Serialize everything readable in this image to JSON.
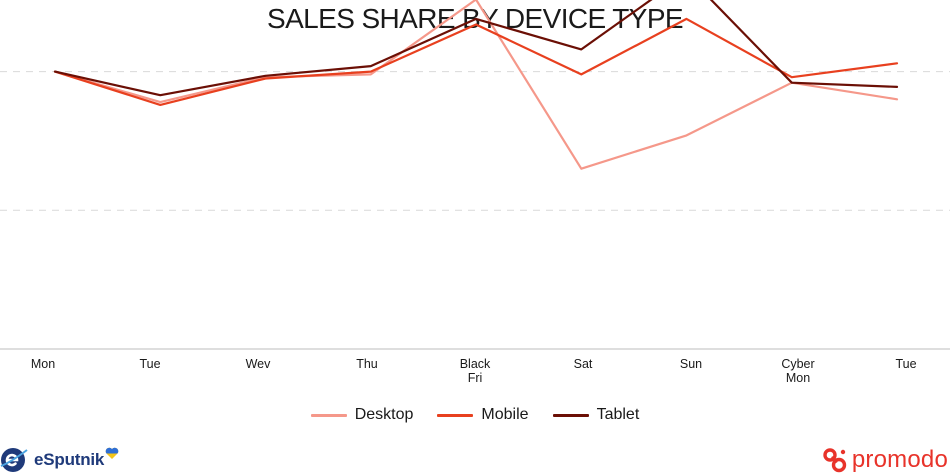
{
  "chart_data": {
    "type": "line",
    "title": "SALES SHARE BY DEVICE TYPE",
    "categories": [
      [
        "Mon"
      ],
      [
        "Tue"
      ],
      [
        "Wev"
      ],
      [
        "Thu"
      ],
      [
        "Black",
        "Fri"
      ],
      [
        "Sat"
      ],
      [
        "Sun"
      ],
      [
        "Cyber",
        "Mon"
      ],
      [
        "Tue"
      ]
    ],
    "ylim": [
      -1,
      0.15
    ],
    "gridlines": [
      0,
      -0.5
    ],
    "grid": true,
    "legend_position": "bottom",
    "series": [
      {
        "name": "Desktop",
        "color": "#f5988a",
        "values": [
          0.0,
          -0.11,
          -0.02,
          -0.01,
          0.26,
          -0.35,
          -0.23,
          -0.04,
          -0.1
        ]
      },
      {
        "name": "Mobile",
        "color": "#e8401f",
        "values": [
          0.0,
          -0.12,
          -0.025,
          0.0,
          0.17,
          -0.01,
          0.19,
          -0.02,
          0.03
        ]
      },
      {
        "name": "Tablet",
        "color": "#6b0f05",
        "values": [
          0.0,
          -0.085,
          -0.015,
          0.02,
          0.19,
          0.08,
          0.35,
          -0.04,
          -0.055
        ]
      }
    ]
  },
  "legend": {
    "items": [
      {
        "label": "Desktop",
        "color": "#f5988a"
      },
      {
        "label": "Mobile",
        "color": "#e8401f"
      },
      {
        "label": "Tablet",
        "color": "#6b0f05"
      }
    ]
  },
  "logos": {
    "left": "eSputnik",
    "right": "promodo"
  },
  "colors": {
    "axis": "#bdbdbd",
    "grid": "#d9d9d9",
    "esputnik_blue": "#1f3a7a",
    "promodo_red": "#e8332a"
  }
}
